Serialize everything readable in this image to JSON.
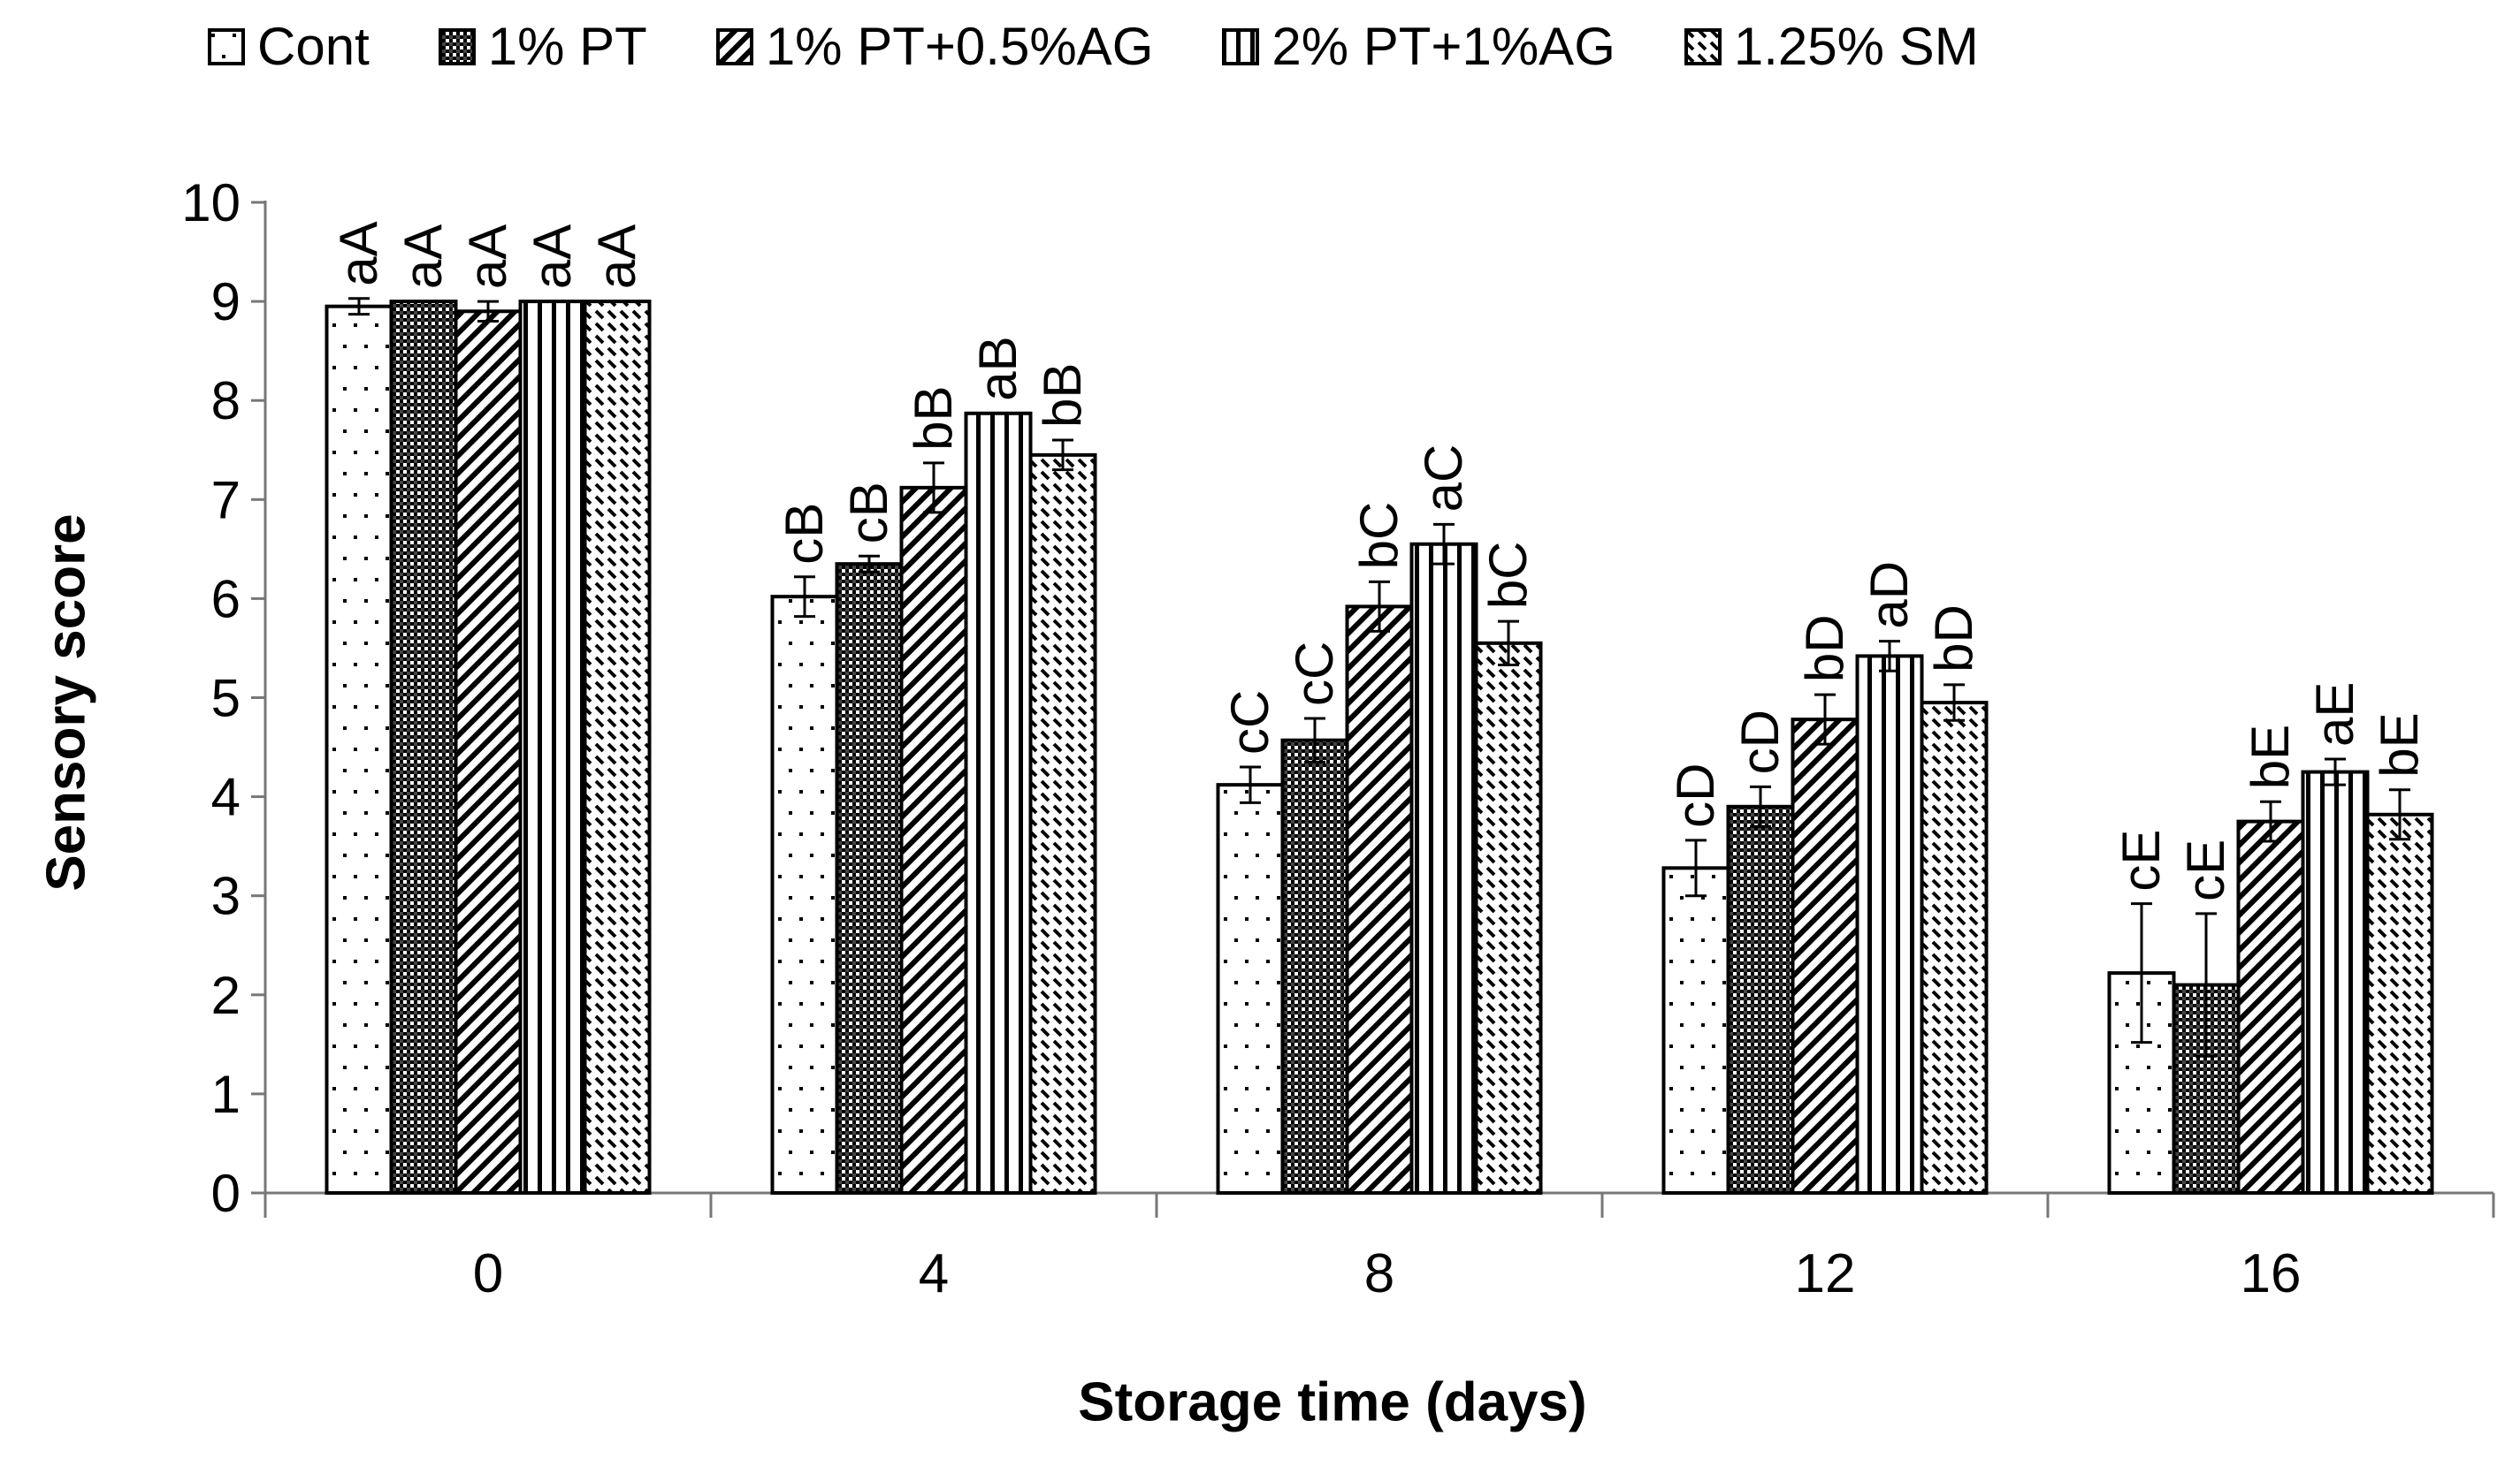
{
  "chart_data": {
    "type": "bar",
    "title": "",
    "xlabel": "Storage time (days)",
    "ylabel": "Sensory score",
    "ylim": [
      0,
      10
    ],
    "yticks": [
      "0",
      "1",
      "2",
      "3",
      "4",
      "5",
      "6",
      "7",
      "8",
      "9",
      "10"
    ],
    "categories": [
      "0",
      "4",
      "8",
      "12",
      "16"
    ],
    "series": [
      {
        "name": "Cont",
        "pattern": "dots",
        "values": [
          8.95,
          6.02,
          4.12,
          3.28,
          2.22
        ],
        "errors": [
          0.08,
          0.2,
          0.18,
          0.28,
          0.7
        ],
        "labels": [
          "aA",
          "cB",
          "cC",
          "cD",
          "cE"
        ]
      },
      {
        "name": "1% PT",
        "pattern": "checker",
        "values": [
          9.0,
          6.35,
          4.57,
          3.9,
          2.1
        ],
        "errors": [
          0,
          0.08,
          0.22,
          0.2,
          0.72
        ],
        "labels": [
          "aA",
          "cB",
          "cC",
          "cD",
          "cE"
        ]
      },
      {
        "name": "1% PT+0.5%AG",
        "pattern": "diag",
        "values": [
          8.9,
          7.12,
          5.92,
          4.78,
          3.75
        ],
        "errors": [
          0.1,
          0.25,
          0.25,
          0.25,
          0.2
        ],
        "labels": [
          "aA",
          "bB",
          "bC",
          "bD",
          "bE"
        ]
      },
      {
        "name": "2% PT+1%AG",
        "pattern": "vlines",
        "values": [
          9.0,
          7.87,
          6.55,
          5.42,
          4.25
        ],
        "errors": [
          0,
          0,
          0.2,
          0.15,
          0.13
        ],
        "labels": [
          "aA",
          "aB",
          "aC",
          "aD",
          "aE"
        ]
      },
      {
        "name": "1.25% SM",
        "pattern": "dashdiag",
        "values": [
          9.0,
          7.45,
          5.55,
          4.95,
          3.82
        ],
        "errors": [
          0,
          0.15,
          0.22,
          0.18,
          0.25
        ],
        "labels": [
          "aA",
          "bB",
          "bC",
          "bD",
          "bE"
        ]
      }
    ],
    "grid": false,
    "legend_position": "top"
  }
}
